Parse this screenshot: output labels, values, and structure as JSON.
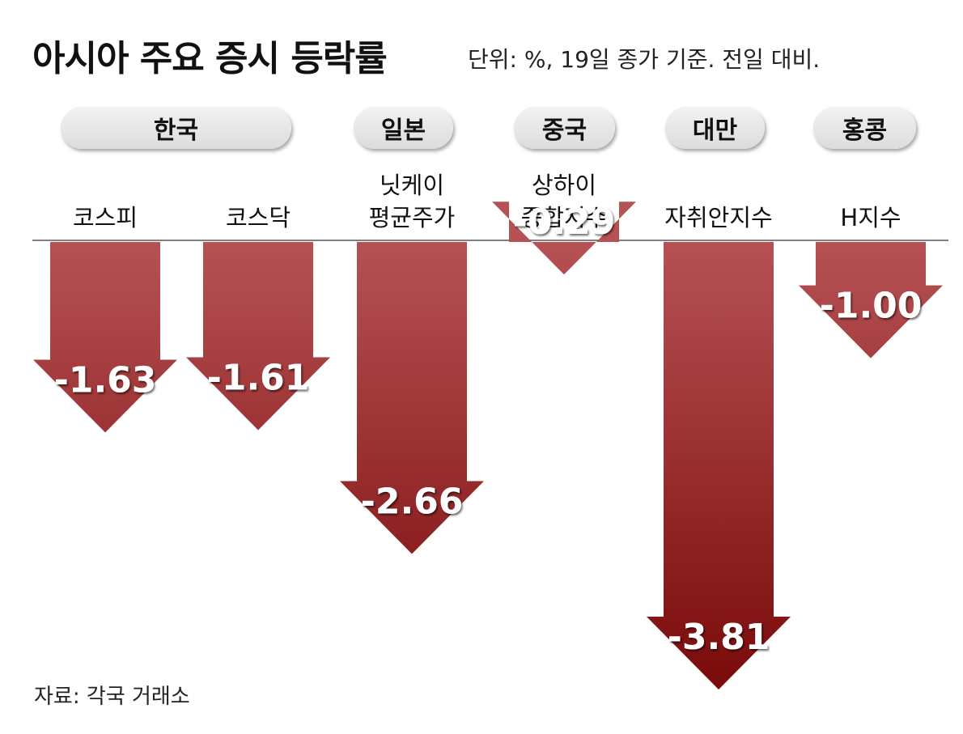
{
  "header": {
    "title": "아시아 주요 증시 등락률",
    "unit_note": "단위: %, 19일 종가 기준. 전일 대비."
  },
  "footer": {
    "source": "자료: 각국 거래소"
  },
  "colors": {
    "arrow_top": "#b65254",
    "arrow_bottom": "#7a0a0a",
    "axis": "#555555",
    "pill": "#e6e6e6"
  },
  "chart_data": {
    "type": "bar",
    "title": "아시아 주요 증시 등락률",
    "subtitle": "단위: %, 19일 종가 기준. 전일 대비.",
    "groups": [
      {
        "label": "한국",
        "categories": [
          "코스피",
          "코스닥"
        ]
      },
      {
        "label": "일본",
        "categories": [
          "닛케이 평균주가"
        ]
      },
      {
        "label": "중국",
        "categories": [
          "상하이 종합지수"
        ]
      },
      {
        "label": "대만",
        "categories": [
          "자취안지수"
        ]
      },
      {
        "label": "홍콩",
        "categories": [
          "H지수"
        ]
      }
    ],
    "categories": [
      "코스피",
      "코스닥",
      "닛케이 평균주가",
      "상하이 종합지수",
      "자취안지수",
      "H지수"
    ],
    "category_lines": [
      [
        "코스피"
      ],
      [
        "코스닥"
      ],
      [
        "닛케이",
        "평균주가"
      ],
      [
        "상하이",
        "종합지수"
      ],
      [
        "자취안지수"
      ],
      [
        "H지수"
      ]
    ],
    "values": [
      -1.63,
      -1.61,
      -2.66,
      -0.29,
      -3.81,
      -1.0
    ],
    "value_labels": [
      "-1.63",
      "-1.61",
      "-2.66",
      "-0.29",
      "-3.81",
      "-1.00"
    ],
    "ylim": [
      -3.81,
      0
    ],
    "grid": false,
    "legend": "none"
  }
}
